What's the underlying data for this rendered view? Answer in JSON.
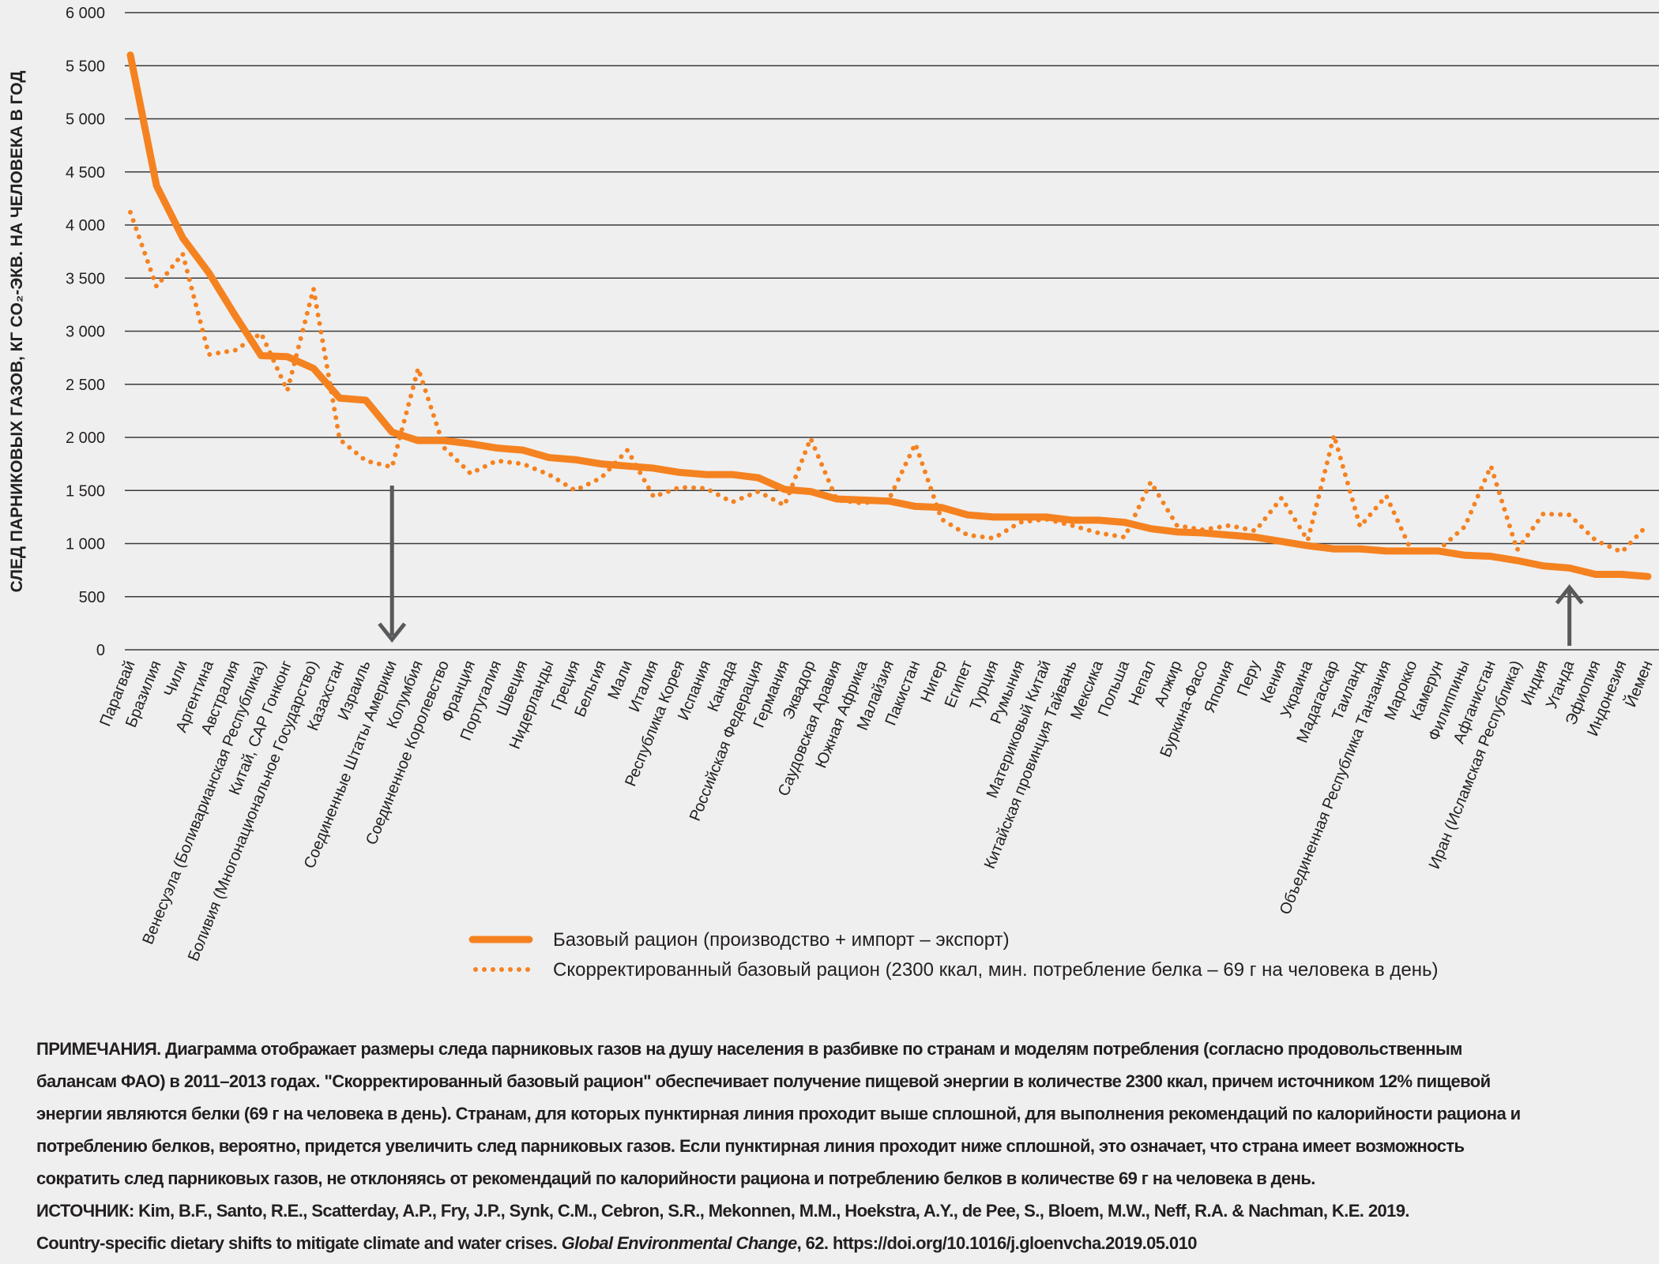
{
  "chart_data": {
    "type": "line",
    "title": "",
    "ylabel": "СЛЕД ПАРНИКОВЫХ ГАЗОВ, КГ CO₂-ЭКВ. НА ЧЕЛОВЕКА В ГОД",
    "xlabel": "",
    "ylim": [
      0,
      6000
    ],
    "yticks": [
      0,
      500,
      1000,
      1500,
      2000,
      2500,
      3000,
      3500,
      4000,
      4500,
      5000,
      5500,
      6000
    ],
    "ytick_labels": [
      "0",
      "500",
      "1 000",
      "1 500",
      "2 000",
      "2 500",
      "3 000",
      "3 500",
      "4 000",
      "4 500",
      "5 000",
      "5 500",
      "6 000"
    ],
    "grid": true,
    "legend_position": "bottom-center",
    "categories": [
      "Парагвай",
      "Бразилия",
      "Чили",
      "Аргентина",
      "Австралия",
      "Венесуэла (Боливарианская Республика)",
      "Китай, САР Гонконг",
      "Боливия (Многонациональное Государство)",
      "Казахстан",
      "Израиль",
      "Соединенные Штаты Америки",
      "Колумбия",
      "Соединенное Королевство",
      "Франция",
      "Португалия",
      "Швеция",
      "Нидерланды",
      "Греция",
      "Бельгия",
      "Мали",
      "Италия",
      "Республика Корея",
      "Испания",
      "Канада",
      "Российская Федерация",
      "Германия",
      "Эквадор",
      "Саудовская Аравия",
      "Южная Африка",
      "Малайзия",
      "Пакистан",
      "Нигер",
      "Египет",
      "Турция",
      "Румыния",
      "Материковый Китай",
      "Китайская провинция Тайвань",
      "Мексика",
      "Польша",
      "Непал",
      "Алжир",
      "Буркина-Фасо",
      "Япония",
      "Перу",
      "Кения",
      "Украина",
      "Мадагаскар",
      "Таиланд",
      "Объединенная Республика Танзания",
      "Марокко",
      "Камерун",
      "Филиппины",
      "Афганистан",
      "Иран (Исламская Республика)",
      "Индия",
      "Уганда",
      "Эфиопия",
      "Индонезия",
      "Йемен"
    ],
    "series": [
      {
        "name": "Базовый рацион (производство + импорт – экспорт)",
        "style": "solid",
        "color": "#f58220",
        "values": [
          5600,
          4370,
          3880,
          3550,
          3150,
          2770,
          2760,
          2650,
          2370,
          2350,
          2050,
          1970,
          1970,
          1940,
          1900,
          1880,
          1810,
          1790,
          1750,
          1730,
          1710,
          1670,
          1650,
          1650,
          1620,
          1510,
          1490,
          1420,
          1410,
          1400,
          1350,
          1340,
          1270,
          1250,
          1250,
          1250,
          1220,
          1220,
          1200,
          1140,
          1110,
          1100,
          1080,
          1060,
          1020,
          980,
          950,
          950,
          930,
          930,
          930,
          890,
          880,
          840,
          790,
          770,
          710,
          710,
          690
        ]
      },
      {
        "name": "Скорректированный базовый рацион (2300 ккал, мин. потребление белка – 69 г на человека в день)",
        "style": "dotted",
        "color": "#f58220",
        "values": [
          4120,
          3420,
          3730,
          2780,
          2820,
          2980,
          2440,
          3400,
          1980,
          1780,
          1720,
          2650,
          1900,
          1660,
          1780,
          1750,
          1650,
          1500,
          1620,
          1880,
          1440,
          1530,
          1520,
          1390,
          1490,
          1360,
          1990,
          1410,
          1380,
          1420,
          1940,
          1230,
          1080,
          1050,
          1200,
          1230,
          1170,
          1100,
          1060,
          1580,
          1170,
          1130,
          1170,
          1120,
          1430,
          1030,
          2020,
          1160,
          1450,
          910,
          940,
          1160,
          1730,
          940,
          1280,
          1270,
          1030,
          920,
          1180
        ]
      }
    ],
    "annotations": [
      {
        "type": "arrow-down",
        "category": "Соединенные Штаты Америки"
      },
      {
        "type": "arrow-up",
        "category": "Уганда"
      }
    ]
  },
  "notes": {
    "label": "ПРИМЕЧАНИЯ.",
    "lines": [
      " Диаграмма отображает размеры следа парниковых газов на душу населения в разбивке по странам и моделям потребления (согласно продовольственным",
      "балансам ФАО) в 2011–2013 годах. \"Скорректированный базовый рацион\" обеспечивает получение пищевой энергии в количестве 2300 ккал, причем источником 12% пищевой",
      "энергии являются белки (69 г на человека в день). Странам, для которых пунктирная линия проходит выше сплошной, для выполнения рекомендаций по калорийности рациона и",
      "потреблению белков, вероятно, придется увеличить след парниковых газов. Если пунктирная линия проходит ниже сплошной, это означает, что страна имеет возможность",
      "сократить след парниковых газов, не отклоняясь от рекомендаций по калорийности рациона и потреблению белков в количестве 69 г на человека в день."
    ]
  },
  "source": {
    "label": "ИСТОЧНИК:",
    "line1": " Kim, B.F., Santo, R.E., Scatterday, A.P., Fry, J.P., Synk, C.M., Cebron, S.R., Mekonnen, M.M., Hoekstra, A.Y., de Pee, S., Bloem, M.W., Neff, R.A. & Nachman, K.E. 2019.",
    "line2_a": "Country-specific dietary shifts to mitigate climate and water crises. ",
    "journal": "Global Environmental Change",
    "line2_b": ", 62. https://doi.org/10.1016/j.gloenvcha.2019.05.010"
  }
}
